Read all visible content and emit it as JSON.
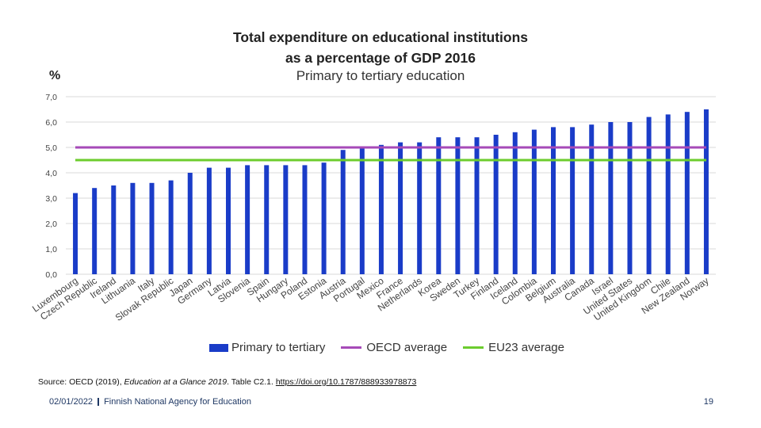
{
  "title_line1": "Total expenditure on educational institutions",
  "title_line2": "as a percentage of GDP 2016",
  "subtitle": "Primary to tertiary education",
  "unit_label": "%",
  "source": {
    "prefix": "Source: OECD (2019), ",
    "italic": "Education at a Glance 2019",
    "suffix": ". Table C2.1. ",
    "link": "https://doi.org/10.1787/888933978873"
  },
  "footer": {
    "date": "02/01/2022",
    "org": "Finnish National Agency for Education",
    "page": "19"
  },
  "colors": {
    "bar": "#1a3cc8",
    "oecd_line": "#a64ab8",
    "eu23_line": "#6ccc2e",
    "grid": "#d9d9d9"
  },
  "chart_data": {
    "type": "bar",
    "title": "Total expenditure on educational institutions as a percentage of GDP 2016",
    "subtitle": "Primary to tertiary education",
    "ylabel": "%",
    "ylim": [
      0,
      7
    ],
    "yticks": [
      "0,0",
      "1,0",
      "2,0",
      "3,0",
      "4,0",
      "5,0",
      "6,0",
      "7,0"
    ],
    "grid": true,
    "legend_position": "bottom",
    "categories": [
      "Luxembourg",
      "Czech Republic",
      "Ireland",
      "Lithuania",
      "Italy",
      "Slovak Republic",
      "Japan",
      "Germany",
      "Latvia",
      "Slovenia",
      "Spain",
      "Hungary",
      "Poland",
      "Estonia",
      "Austria",
      "Portugal",
      "Mexico",
      "France",
      "Netherlands",
      "Korea",
      "Sweden",
      "Turkey",
      "Finland",
      "Iceland",
      "Colombia",
      "Belgium",
      "Australia",
      "Canada",
      "Israel",
      "United States",
      "United Kingdom",
      "Chile",
      "New Zealand",
      "Norway"
    ],
    "series": [
      {
        "name": "Primary to tertiary",
        "type": "bar",
        "values": [
          3.2,
          3.4,
          3.5,
          3.6,
          3.6,
          3.7,
          4.0,
          4.2,
          4.2,
          4.3,
          4.3,
          4.3,
          4.3,
          4.4,
          4.9,
          5.0,
          5.1,
          5.2,
          5.2,
          5.4,
          5.4,
          5.4,
          5.5,
          5.6,
          5.7,
          5.8,
          5.8,
          5.9,
          6.0,
          6.0,
          6.2,
          6.3,
          6.4,
          6.5
        ]
      },
      {
        "name": "OECD average",
        "type": "line",
        "value": 5.0
      },
      {
        "name": "EU23 average",
        "type": "line",
        "value": 4.5
      }
    ]
  }
}
